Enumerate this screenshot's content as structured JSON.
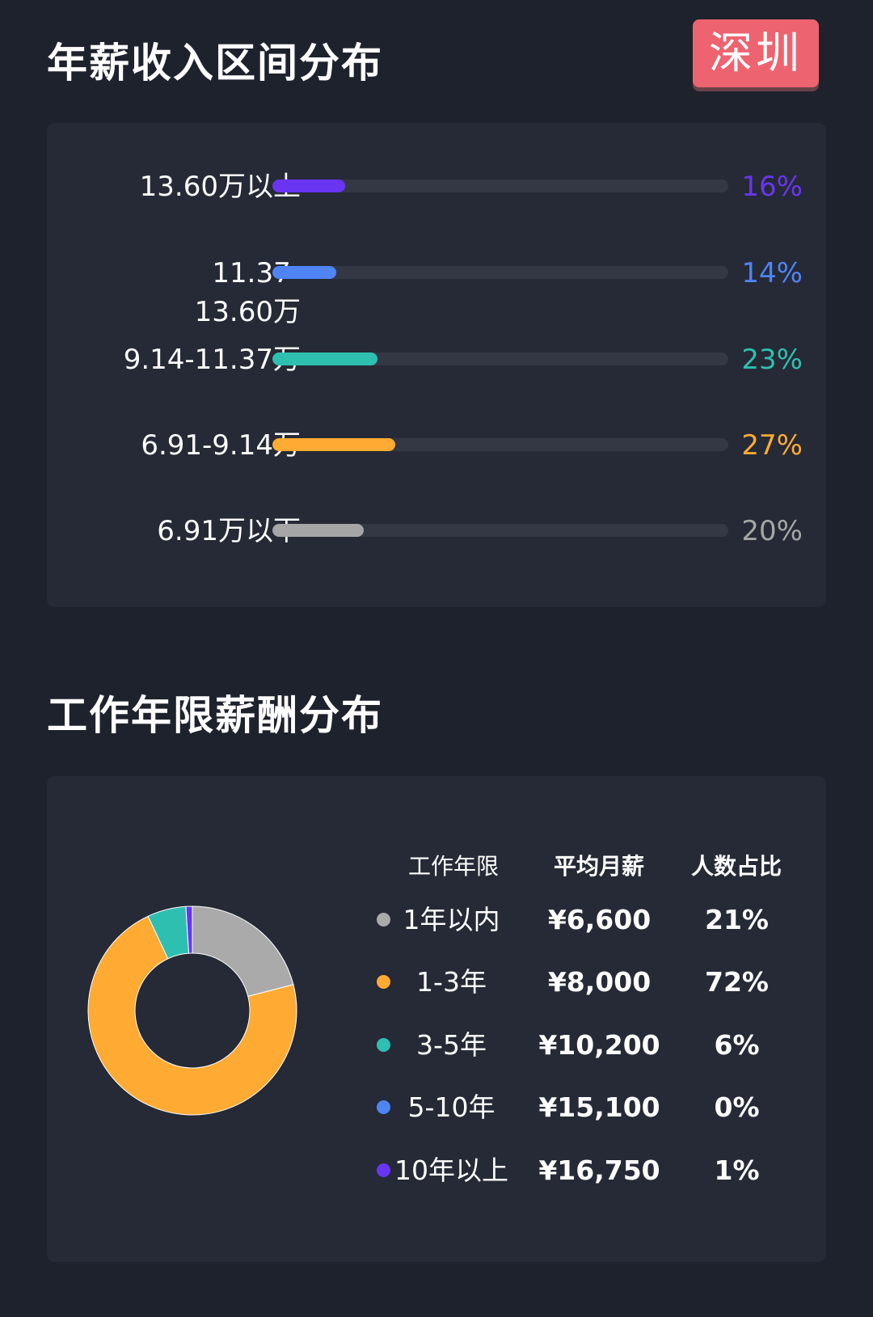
{
  "income_section": {
    "title": "年薪收入区间分布",
    "city": "深圳",
    "rows": [
      {
        "label": "13.60万以上",
        "pct_text": "16%",
        "value": 16,
        "color": "#6a35f2"
      },
      {
        "label": "11.37-13.60万",
        "pct_text": "14%",
        "value": 14,
        "color": "#4f84f5"
      },
      {
        "label": "9.14-11.37万",
        "pct_text": "23%",
        "value": 23,
        "color": "#2fbfb1"
      },
      {
        "label": "6.91-9.14万",
        "pct_text": "27%",
        "value": 27,
        "color": "#ffaa33"
      },
      {
        "label": "6.91万以下",
        "pct_text": "20%",
        "value": 20,
        "color": "#a6a6a6"
      }
    ]
  },
  "experience_section": {
    "title": "工作年限薪酬分布",
    "headers": {
      "years": "工作年限",
      "salary": "平均月薪",
      "ratio": "人数占比"
    },
    "rows": [
      {
        "years": "1年以内",
        "salary": "¥6,600",
        "ratio": "21%",
        "color": "#aaaaaa"
      },
      {
        "years": "1-3年",
        "salary": "¥8,000",
        "ratio": "72%",
        "color": "#ffaa33"
      },
      {
        "years": "3-5年",
        "salary": "¥10,200",
        "ratio": "6%",
        "color": "#2fbfb1"
      },
      {
        "years": "5-10年",
        "salary": "¥15,100",
        "ratio": "0%",
        "color": "#4f84f5"
      },
      {
        "years": "10年以上",
        "salary": "¥16,750",
        "ratio": "1%",
        "color": "#6a35f2"
      }
    ]
  },
  "chart_data": {
    "type": "pie",
    "categories": [
      "1年以内",
      "1-3年",
      "3-5年",
      "5-10年",
      "10年以上"
    ],
    "values": [
      21,
      72,
      6,
      0,
      1
    ],
    "colors": [
      "#aaaaaa",
      "#ffaa33",
      "#2fbfb1",
      "#4f84f5",
      "#6a35f2"
    ],
    "title": "",
    "donut": true
  }
}
